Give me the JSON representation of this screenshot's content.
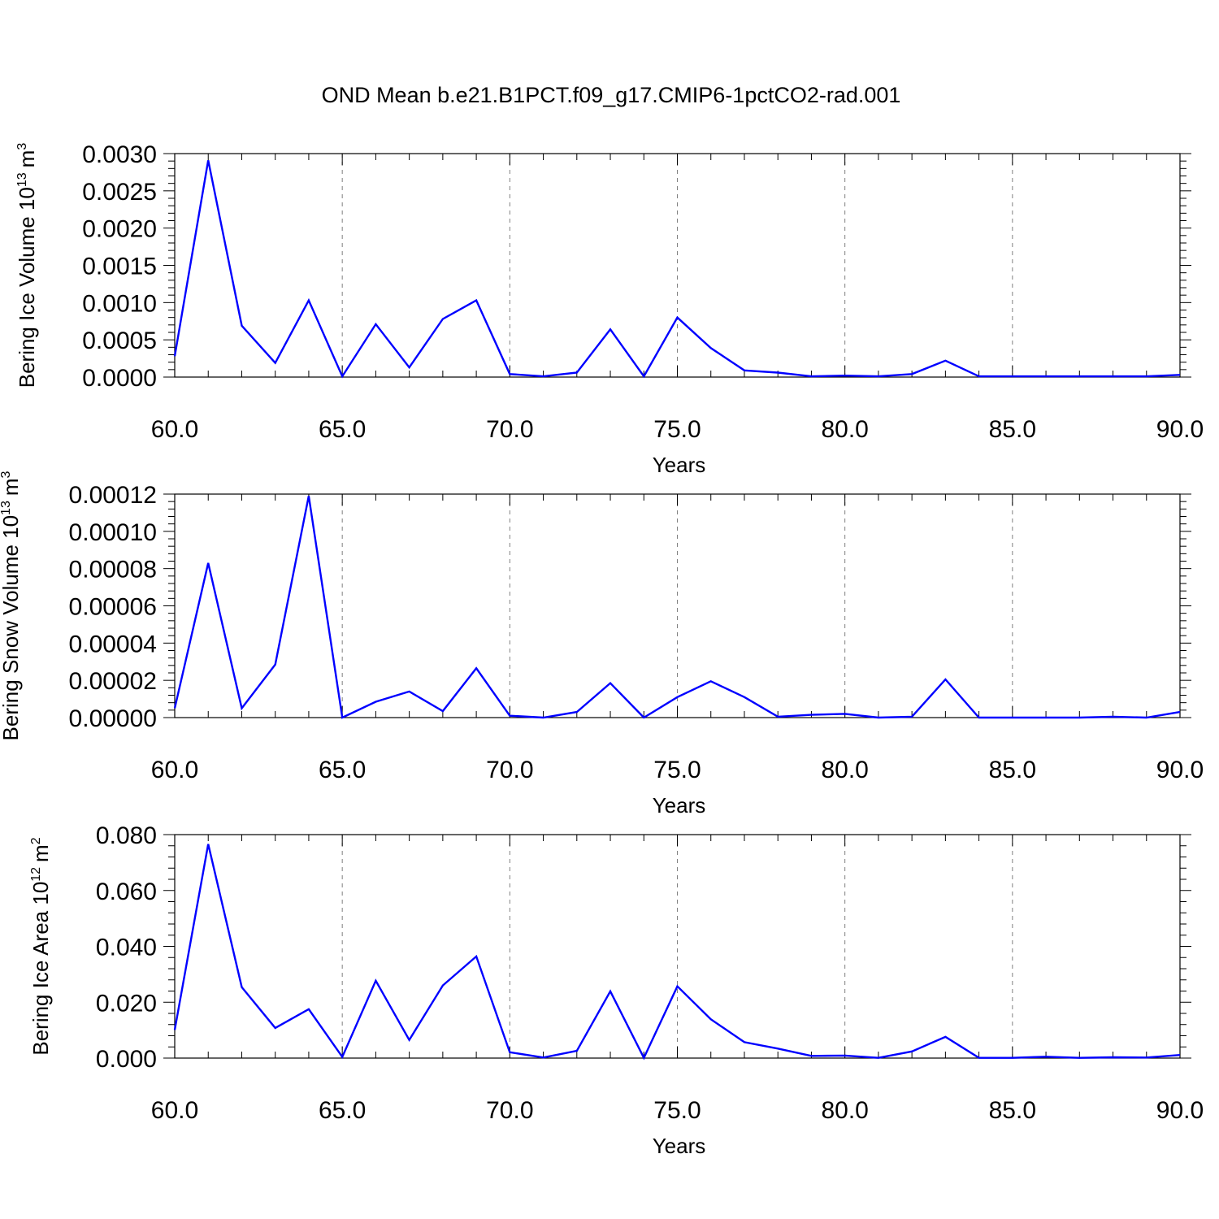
{
  "title": "OND Mean b.e21.B1PCT.f09_g17.CMIP6-1pctCO2-rad.001",
  "colors": {
    "line": "#0000ff",
    "axis": "#000000",
    "grid": "#808080",
    "background": "#ffffff"
  },
  "chart_data": [
    {
      "type": "line",
      "ylabel": "Bering Ice Volume 10",
      "ylabel_exp": "13",
      "ylabel_unit": "m",
      "ylabel_unit_exp": "3",
      "xlabel": "Years",
      "xlim": [
        60,
        90
      ],
      "ylim": [
        0,
        0.003
      ],
      "x_ticks": [
        "60.0",
        "65.0",
        "70.0",
        "75.0",
        "80.0",
        "85.0",
        "90.0"
      ],
      "y_ticks": [
        "0.0000",
        "0.0005",
        "0.0010",
        "0.0015",
        "0.0020",
        "0.0025",
        "0.0030"
      ],
      "grid": "vertical dashed at major x ticks",
      "x": [
        60,
        61,
        62,
        63,
        64,
        65,
        66,
        67,
        68,
        69,
        70,
        71,
        72,
        73,
        74,
        75,
        76,
        77,
        78,
        79,
        80,
        81,
        82,
        83,
        84,
        85,
        86,
        87,
        88,
        89,
        90
      ],
      "series": [
        {
          "values": [
            0.00028,
            0.00291,
            0.00069,
            0.00019,
            0.00103,
            1e-05,
            0.00071,
            0.00013,
            0.00078,
            0.00103,
            4e-05,
            1e-05,
            6e-05,
            0.00064,
            1e-05,
            0.0008,
            0.00039,
            9e-05,
            6e-05,
            1e-05,
            2e-05,
            1e-05,
            4e-05,
            0.00022,
            1e-05,
            1e-05,
            1e-05,
            1e-05,
            1e-05,
            1e-05,
            3e-05
          ]
        }
      ]
    },
    {
      "type": "line",
      "ylabel": "Bering Snow Volume 10",
      "ylabel_exp": "13",
      "ylabel_unit": "m",
      "ylabel_unit_exp": "3",
      "xlabel": "Years",
      "xlim": [
        60,
        90
      ],
      "ylim": [
        0,
        0.00012
      ],
      "x_ticks": [
        "60.0",
        "65.0",
        "70.0",
        "75.0",
        "80.0",
        "85.0",
        "90.0"
      ],
      "y_ticks": [
        "0.00000",
        "0.00002",
        "0.00004",
        "0.00006",
        "0.00008",
        "0.00010",
        "0.00012"
      ],
      "grid": "vertical dashed at major x ticks",
      "x": [
        60,
        61,
        62,
        63,
        64,
        65,
        66,
        67,
        68,
        69,
        70,
        71,
        72,
        73,
        74,
        75,
        76,
        77,
        78,
        79,
        80,
        81,
        82,
        83,
        84,
        85,
        86,
        87,
        88,
        89,
        90
      ],
      "series": [
        {
          "values": [
            5e-06,
            8.3e-05,
            5e-06,
            2.85e-05,
            0.000119,
            0.0,
            8.5e-06,
            1.4e-05,
            3.5e-06,
            2.65e-05,
            1e-06,
            0.0,
            3e-06,
            1.85e-05,
            0.0,
            1.1e-05,
            1.95e-05,
            1.1e-05,
            5e-07,
            1.5e-06,
            2e-06,
            0.0,
            5e-07,
            2.05e-05,
            0.0,
            0.0,
            0.0,
            0.0,
            5e-07,
            0.0,
            3e-06
          ]
        }
      ]
    },
    {
      "type": "line",
      "ylabel": "Bering Ice Area 10",
      "ylabel_exp": "12",
      "ylabel_unit": "m",
      "ylabel_unit_exp": "2",
      "xlabel": "Years",
      "xlim": [
        60,
        90
      ],
      "ylim": [
        0,
        0.08
      ],
      "x_ticks": [
        "60.0",
        "65.0",
        "70.0",
        "75.0",
        "80.0",
        "85.0",
        "90.0"
      ],
      "y_ticks": [
        "0.000",
        "0.020",
        "0.040",
        "0.060",
        "0.080"
      ],
      "grid": "vertical dashed at major x ticks",
      "x": [
        60,
        61,
        62,
        63,
        64,
        65,
        66,
        67,
        68,
        69,
        70,
        71,
        72,
        73,
        74,
        75,
        76,
        77,
        78,
        79,
        80,
        81,
        82,
        83,
        84,
        85,
        86,
        87,
        88,
        89,
        90
      ],
      "series": [
        {
          "values": [
            0.0101,
            0.0766,
            0.0254,
            0.0108,
            0.0175,
            0.0004,
            0.0277,
            0.0065,
            0.026,
            0.0364,
            0.0021,
            0.0002,
            0.0026,
            0.0239,
            0.0001,
            0.0257,
            0.0139,
            0.0057,
            0.0034,
            0.0008,
            0.0009,
            0.0001,
            0.0024,
            0.0076,
            0.0001,
            0.0001,
            0.0005,
            0.0001,
            0.0003,
            0.0002,
            0.0011
          ]
        }
      ]
    }
  ]
}
